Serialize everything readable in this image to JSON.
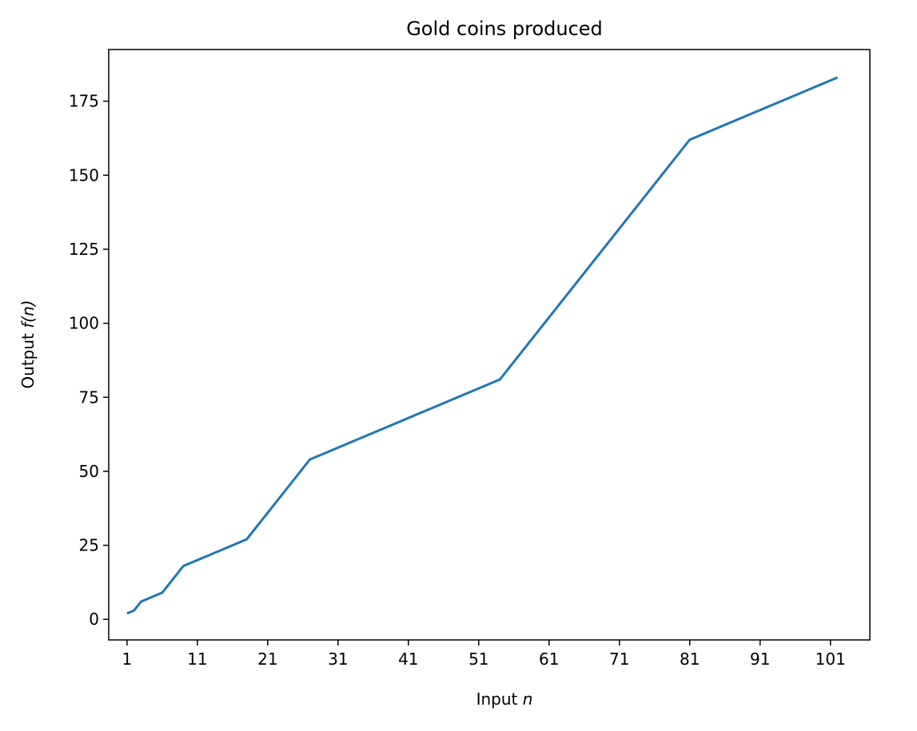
{
  "chart_data": {
    "type": "line",
    "title": "Gold coins produced",
    "xlabel": "Input",
    "xlabel_var": "n",
    "ylabel": "Output",
    "ylabel_var": "f(n)",
    "xlim": [
      -1.6,
      106.6
    ],
    "ylim": [
      -6.95,
      192.45
    ],
    "xticks": [
      1,
      11,
      21,
      31,
      41,
      51,
      61,
      71,
      81,
      91,
      101
    ],
    "yticks": [
      0,
      25,
      50,
      75,
      100,
      125,
      150,
      175
    ],
    "grid": false,
    "series": [
      {
        "color": "#1f77b4",
        "x": [
          1,
          2,
          3,
          6,
          9,
          18,
          27,
          54,
          81,
          102
        ],
        "y": [
          2,
          3,
          6,
          9,
          18,
          27,
          54,
          81,
          162,
          183
        ]
      }
    ]
  }
}
